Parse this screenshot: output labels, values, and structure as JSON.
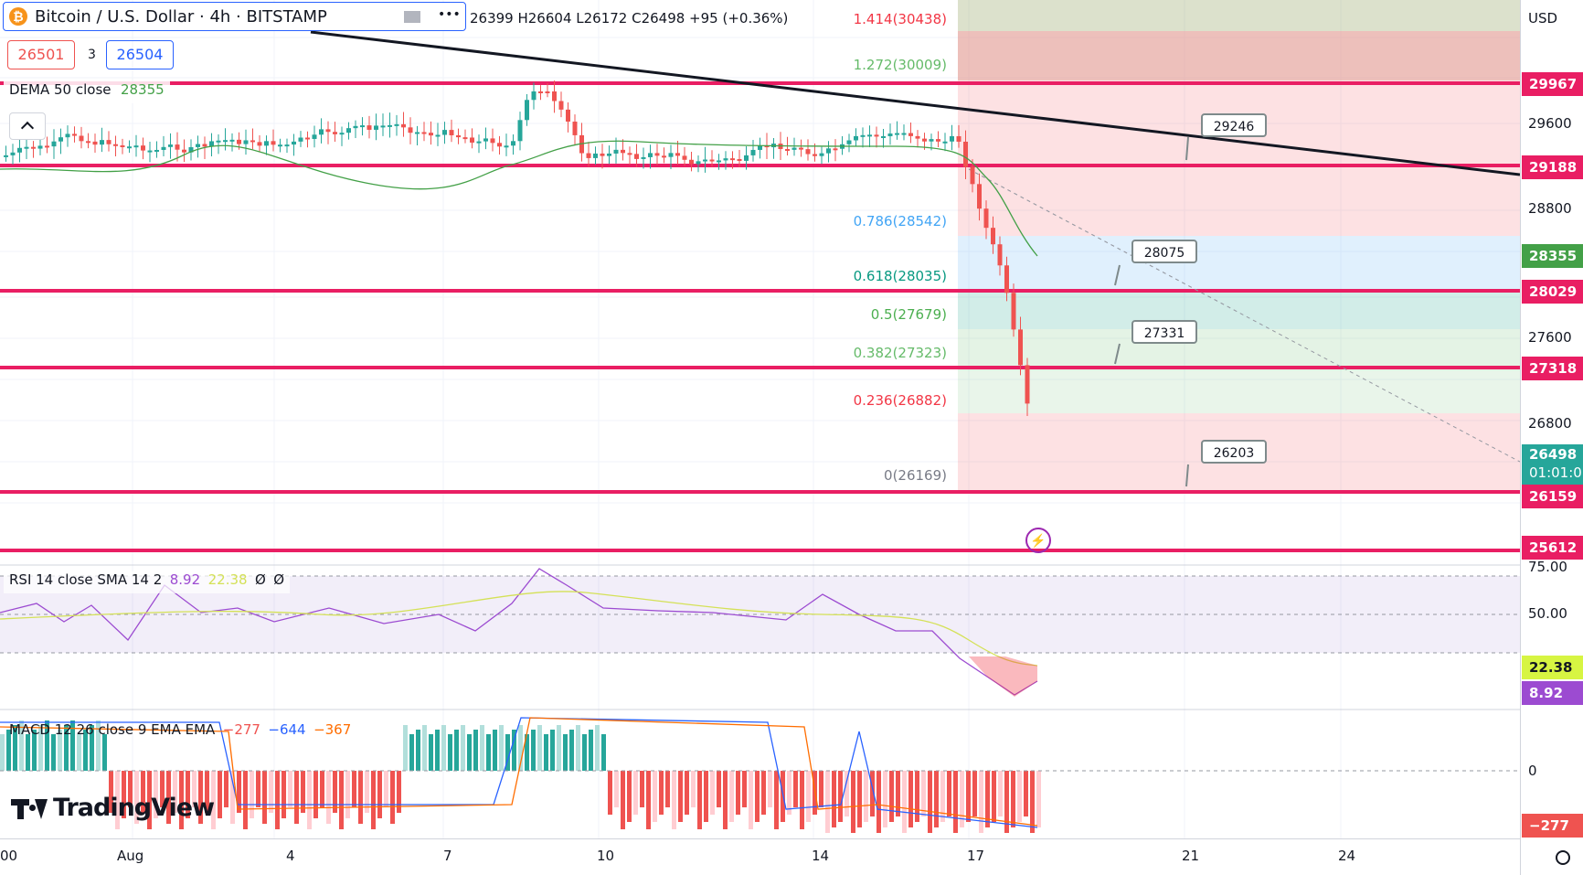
{
  "header": {
    "title": "Bitcoin / U.S. Dollar · 4h · BITSTAMP",
    "ohlc": "26399  H26604  L26172  C26498  +95 (+0.36%)",
    "bid": "26501",
    "spread": "3",
    "ask": "26504",
    "more": "•••"
  },
  "indicators": {
    "dema_label": "DEMA 50 close",
    "dema_value": "28355",
    "rsi_label": "RSI 14 close SMA 14 2",
    "rsi_value": "8.92",
    "rsi_sma_value": "22.38",
    "rsi_extra1": "Ø",
    "rsi_extra2": "Ø",
    "macd_label": "MACD 12 26 close 9 EMA EMA",
    "macd_hist": "−277",
    "macd_line": "−644",
    "macd_signal": "−367"
  },
  "fib_levels": [
    {
      "label": "1.414(30438)",
      "color": "#4caf50"
    },
    {
      "label": "1.272(30009)",
      "color": "#81c784"
    },
    {
      "label": "0.786(28542)",
      "color": "#64b5f6"
    },
    {
      "label": "0.618(28035)",
      "color": "#089981"
    },
    {
      "label": "0.5(27679)",
      "color": "#4caf50"
    },
    {
      "label": "0.382(27323)",
      "color": "#81c784"
    },
    {
      "label": "0.236(26882)",
      "color": "#f23645"
    },
    {
      "label": "0(26169)",
      "color": "#787b86"
    }
  ],
  "fib_top_label": "1.414(30438)",
  "callouts": [
    "29246",
    "28075",
    "27331",
    "26203"
  ],
  "price_axis": {
    "currency": "USD",
    "ticks": [
      "29600",
      "28800",
      "27600",
      "26800"
    ],
    "tags": [
      {
        "value": "29967",
        "color": "#e91e63"
      },
      {
        "value": "29188",
        "color": "#e91e63"
      },
      {
        "value": "28355",
        "color": "#43a047"
      },
      {
        "value": "28029",
        "color": "#e91e63"
      },
      {
        "value": "27318",
        "color": "#e91e63"
      },
      {
        "value": "26498",
        "color": "#26a69a"
      },
      {
        "value": "26159",
        "color": "#e91e63"
      },
      {
        "value": "25612",
        "color": "#e91e63"
      }
    ],
    "countdown": "01:01:0",
    "rsi_ticks": [
      "75.00",
      "50.00"
    ],
    "rsi_tags": [
      {
        "value": "22.38",
        "color": "#d7f542"
      },
      {
        "value": "8.92",
        "color": "#9c4bd1"
      }
    ],
    "macd_ticks": [
      "0"
    ],
    "macd_tag": "−277"
  },
  "time_axis": [
    "00",
    "Aug",
    "4",
    "7",
    "10",
    "14",
    "17",
    "21",
    "24"
  ],
  "brand": "TradingView",
  "colors": {
    "up": "#26a69a",
    "down": "#ef5350",
    "accent": "#2962ff",
    "hline": "#e91e63"
  }
}
